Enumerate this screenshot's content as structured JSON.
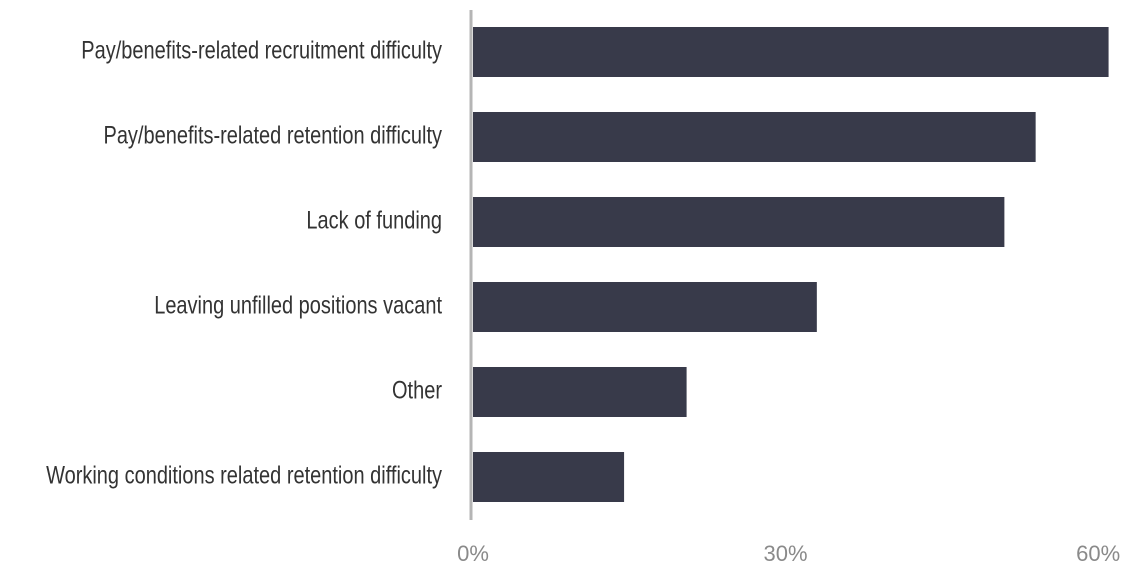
{
  "chart_data": {
    "type": "bar",
    "orientation": "horizontal",
    "categories": [
      "Pay/benefits-related recruitment difficulty",
      "Pay/benefits-related retention difficulty",
      "Lack of funding",
      "Leaving unfilled positions vacant",
      "Other",
      "Working conditions related retention difficulty"
    ],
    "values": [
      61,
      54,
      51,
      33,
      20.5,
      14.5
    ],
    "color": "#383a4a",
    "xlim": [
      0,
      62
    ],
    "xticks": [
      {
        "value": 0,
        "label": "0%"
      },
      {
        "value": 30,
        "label": "30%"
      },
      {
        "value": 60,
        "label": "60%"
      }
    ],
    "grid": false
  }
}
